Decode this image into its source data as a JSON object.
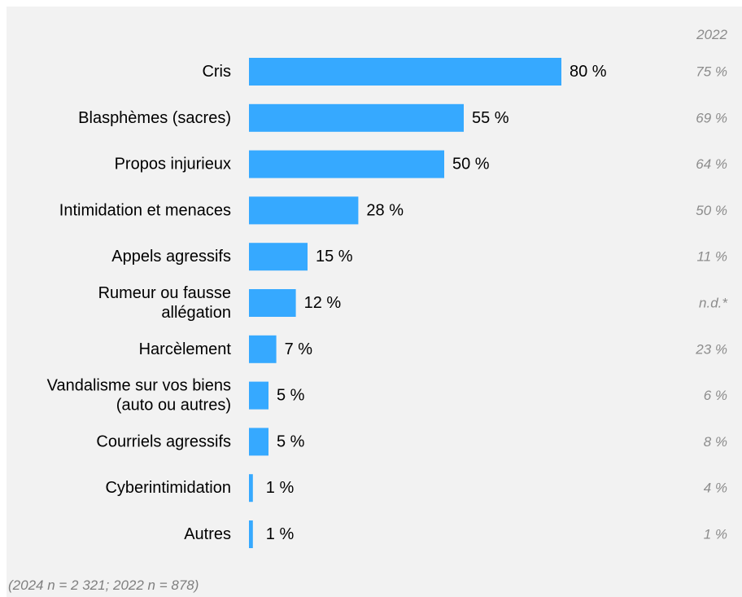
{
  "chart_data": {
    "type": "bar",
    "orientation": "horizontal",
    "categories": [
      "Cris",
      "Blasphèmes (sacres)",
      "Propos injurieux",
      "Intimidation et menaces",
      "Appels agressifs",
      "Rumeur ou fausse allégation",
      "Harcèlement",
      "Vandalisme sur vos biens (auto ou autres)",
      "Courriels agressifs",
      "Cyberintimidation",
      "Autres"
    ],
    "category_lines": [
      [
        "Cris"
      ],
      [
        "Blasphèmes (sacres)"
      ],
      [
        "Propos injurieux"
      ],
      [
        "Intimidation et menaces"
      ],
      [
        "Appels agressifs"
      ],
      [
        "Rumeur ou fausse",
        "allégation"
      ],
      [
        "Harcèlement"
      ],
      [
        "Vandalisme sur vos biens",
        "(auto ou autres)"
      ],
      [
        "Courriels agressifs"
      ],
      [
        "Cyberintimidation"
      ],
      [
        "Autres"
      ]
    ],
    "values": [
      80,
      55,
      50,
      28,
      15,
      12,
      7,
      5,
      5,
      1,
      1
    ],
    "value_labels": [
      "80 %",
      "55 %",
      "50 %",
      "28 %",
      "15 %",
      "12 %",
      "7 %",
      "5 %",
      "5 %",
      "1 %",
      "1 %"
    ],
    "comparison_header": "2022",
    "comparison_labels": [
      "75 %",
      "69 %",
      "64 %",
      "50 %",
      "11 %",
      "n.d.*",
      "23 %",
      "6 %",
      "8 %",
      "4 %",
      "1 %"
    ],
    "xlim": [
      0,
      100
    ],
    "bar_color": "#36a9ff",
    "comparison_color": "#8c8c8c",
    "background_color": "#f2f2f2",
    "grid": false,
    "legend": "none"
  },
  "footnote": "(2024 n = 2 321; 2022 n = 878)"
}
